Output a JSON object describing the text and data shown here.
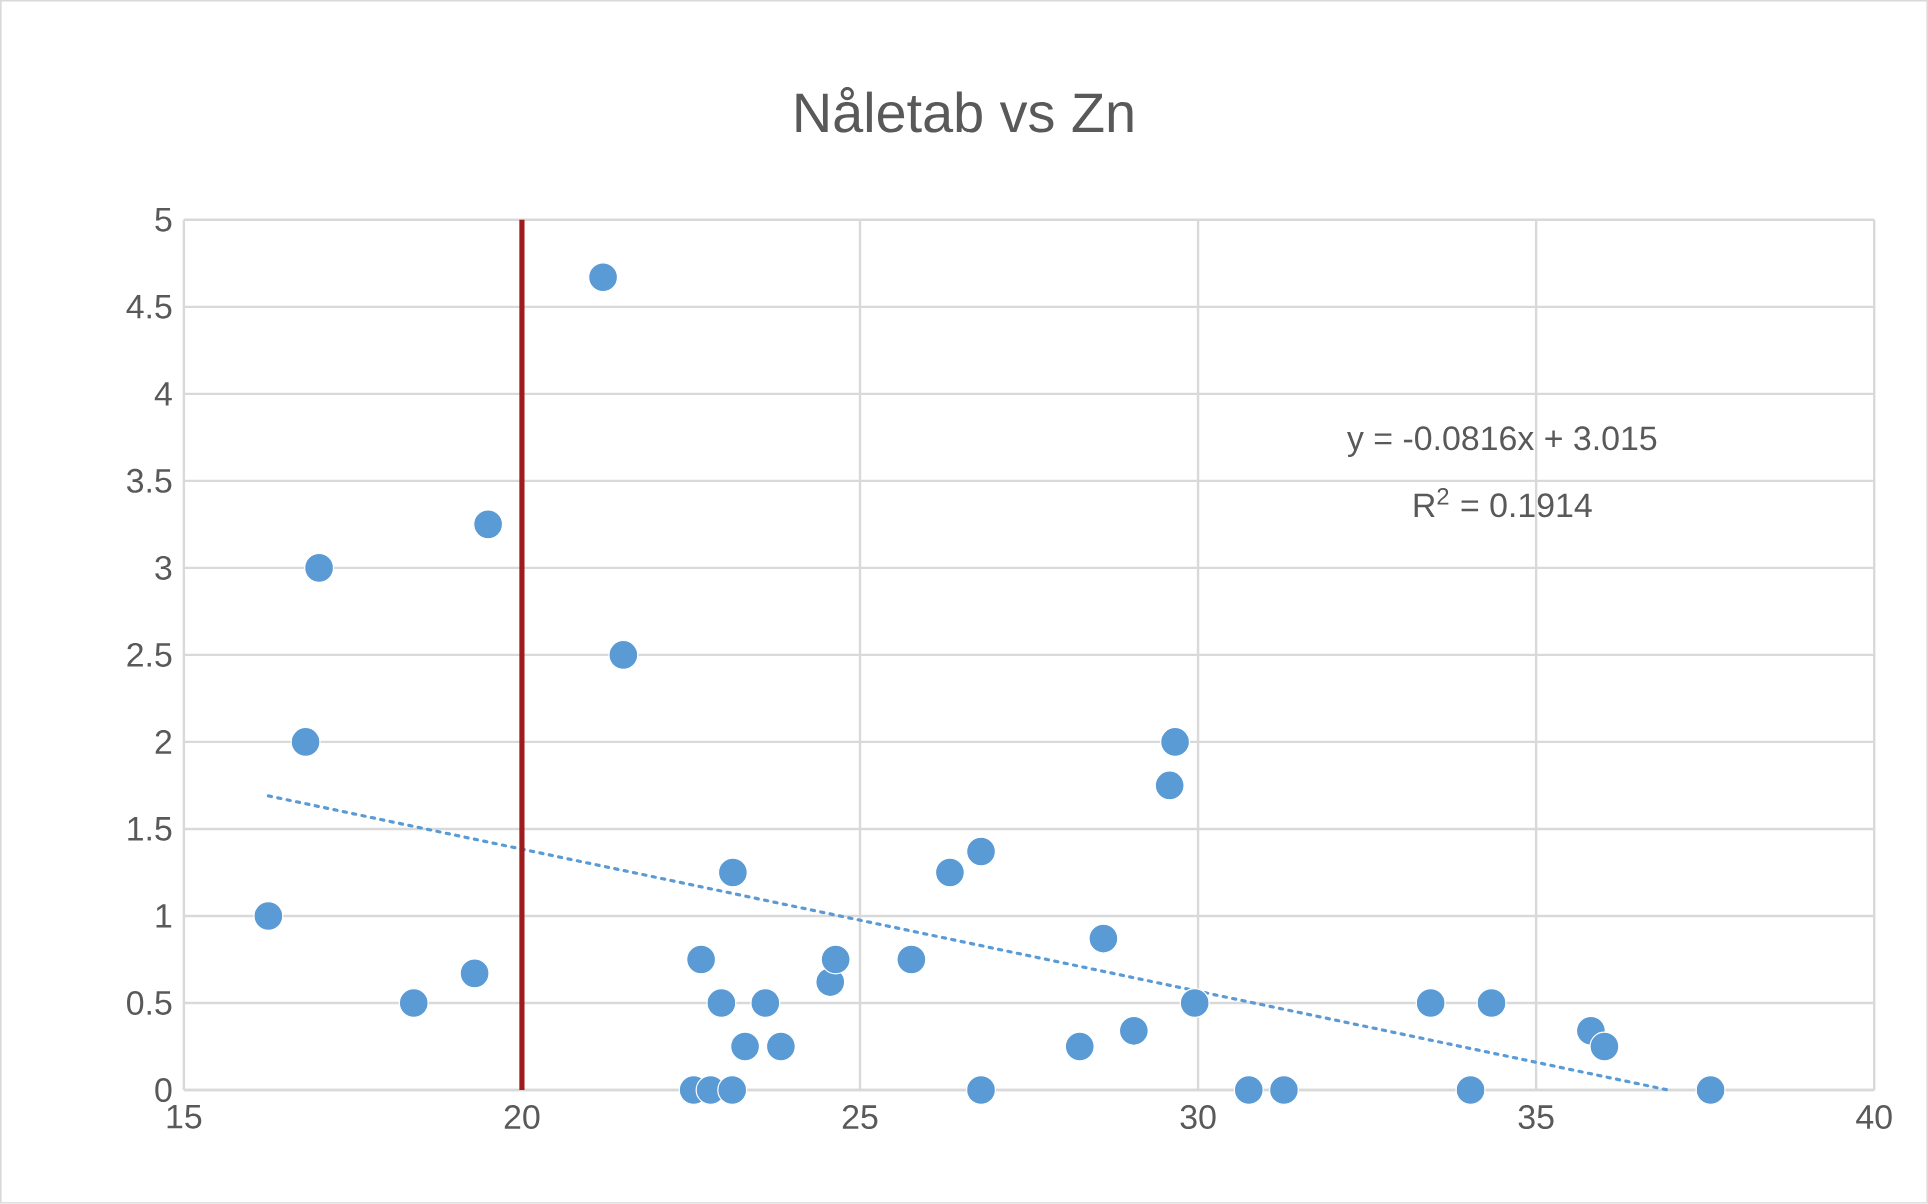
{
  "chart_data": {
    "type": "scatter",
    "title": "Nåletab vs Zn",
    "xlim": [
      15,
      40
    ],
    "xticks": [
      15,
      20,
      25,
      30,
      35,
      40
    ],
    "ylim": [
      0,
      5
    ],
    "yticks": [
      0,
      0.5,
      1,
      1.5,
      2,
      2.5,
      3,
      3.5,
      4,
      4.5,
      5
    ],
    "grid": true,
    "legend": false,
    "series": [
      {
        "type": "scatter",
        "color": "#5b9bd5",
        "marker": "circle",
        "x": [
          16.25,
          16.8,
          17.0,
          18.4,
          19.3,
          19.5,
          21.2,
          21.5,
          22.65,
          22.95,
          23.12,
          23.3,
          23.6,
          23.83,
          22.54,
          22.79,
          23.11,
          24.56,
          24.64,
          25.76,
          26.33,
          26.79,
          26.79,
          28.6,
          28.25,
          29.05,
          29.58,
          29.66,
          29.95,
          30.75,
          31.27,
          33.44,
          34.03,
          34.34,
          35.81,
          36.01,
          37.58
        ],
        "values": [
          1.0,
          2.0,
          3.0,
          0.5,
          0.67,
          3.25,
          4.67,
          2.5,
          0.75,
          0.5,
          1.25,
          0.25,
          0.5,
          0.25,
          0,
          0,
          0,
          0.62,
          0.75,
          0.75,
          1.25,
          1.37,
          0,
          0.87,
          0.25,
          0.34,
          1.75,
          2.0,
          0.5,
          0,
          0,
          0.5,
          0,
          0.5,
          0.34,
          0.25,
          0
        ]
      },
      {
        "type": "line",
        "color": "#5b9bd5",
        "line_style": "dotted",
        "marker": "none",
        "x": [
          16.25,
          36.95
        ],
        "values": [
          1.69,
          0.0
        ]
      }
    ],
    "ref_lines": [
      {
        "axis": "x",
        "value": 20,
        "color": "#a01c1c"
      }
    ],
    "annotations": [
      "y = -0.0816x + 3.015",
      "R$^{2}$ = 0.1914"
    ]
  }
}
